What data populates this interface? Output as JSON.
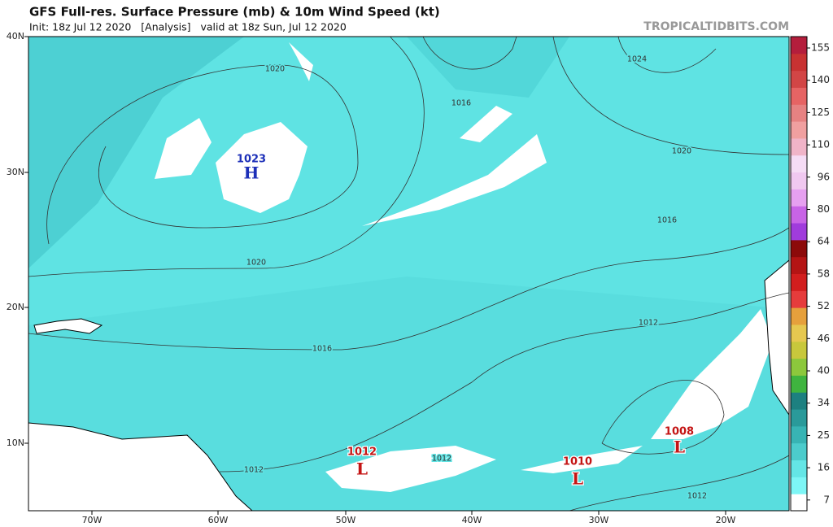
{
  "header": {
    "title": "GFS Full-res. Surface Pressure (mb) & 10m Wind Speed (kt)",
    "init": "Init: 18z Jul 12 2020   [Analysis]   valid at 18z Sun, Jul 12 2020",
    "site": "TROPICALTIDBITS.COM"
  },
  "axes": {
    "lat_labels": [
      "40N",
      "30N",
      "20N",
      "10N"
    ],
    "lon_labels": [
      "70W",
      "60W",
      "50W",
      "40W",
      "30W",
      "20W"
    ]
  },
  "colorbar": {
    "labels": [
      155,
      140,
      125,
      110,
      96,
      80,
      64,
      58,
      52,
      46,
      40,
      34,
      25,
      16,
      7
    ]
  },
  "isobar_labels": [
    "1020",
    "1016",
    "1020",
    "1016",
    "1020",
    "1016",
    "1012",
    "1012",
    "1012",
    "1012",
    "1024"
  ],
  "centers": [
    {
      "pressure": "1023",
      "symbol": "H"
    },
    {
      "pressure": "1012",
      "symbol": "L"
    },
    {
      "pressure": "1010",
      "symbol": "L"
    },
    {
      "pressure": "1008",
      "symbol": "L"
    }
  ]
}
